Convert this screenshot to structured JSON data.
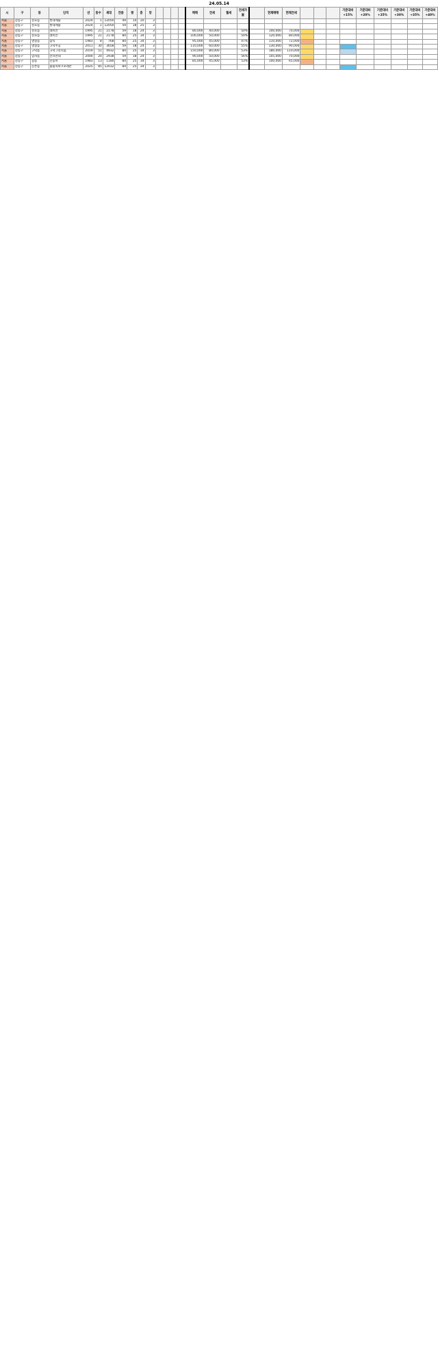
{
  "sheet": {
    "date_label": "24.05.14"
  },
  "columns": [
    "시",
    "구",
    "동",
    "단지",
    "년",
    "동수",
    "세대",
    "전용",
    "평",
    "층",
    "방",
    "",
    "",
    "",
    "",
    "매매",
    "전세",
    "월세",
    "전세가율",
    "",
    "현재매매",
    "현재전세",
    "",
    "",
    "",
    "기준대비 +15%",
    "기준대비 +20%",
    "기준대비 +25%",
    "기준대비 +30%",
    "기준대비 +35%",
    "기준대비 +40%"
  ],
  "rows": [
    {
      "c": [
        "서울",
        "강동구",
        "천호동",
        "롯데캐슬",
        "2024",
        "1",
        "12050",
        "49",
        "14",
        "20",
        "3",
        "",
        "",
        "",
        "",
        "",
        "",
        "",
        "",
        "",
        "",
        "",
        "",
        "",
        "",
        "",
        "",
        "",
        "",
        "",
        ""
      ]
    },
    {
      "c": [
        "서울",
        "강동구",
        "천호동",
        "롯데캐슬",
        "2024",
        "1",
        "12050",
        "59",
        "18",
        "25",
        "3",
        "",
        "",
        "",
        "",
        "",
        "",
        "",
        "",
        "",
        "",
        "",
        "",
        "",
        "",
        "",
        "",
        "",
        "",
        "",
        ""
      ]
    },
    {
      "c": [
        "서울",
        "강동구",
        "천호동",
        "래미안",
        "1995",
        "21",
        "2178",
        "59",
        "18",
        "24",
        "3",
        "",
        "",
        "",
        "",
        "80,000",
        "40,000",
        "",
        "50%",
        "",
        "100,000",
        "70,000",
        "",
        "",
        "",
        "",
        "",
        "",
        "",
        "",
        ""
      ],
      "hl": {
        "22": "hl-yellow"
      }
    },
    {
      "c": [
        "서울",
        "강동구",
        "천호동",
        "래미안",
        "1995",
        "21",
        "2178",
        "84",
        "25",
        "34",
        "3",
        "",
        "",
        "",
        "",
        "100,000",
        "50,000",
        "",
        "50%",
        "",
        "120,000",
        "80,000",
        "",
        "",
        "",
        "",
        "",
        "",
        "",
        "",
        ""
      ],
      "hl": {
        "22": "hl-yellow"
      }
    },
    {
      "c": [
        "서울",
        "강동구",
        "명일동",
        "삼익",
        "1983",
        "8",
        "768",
        "84",
        "25",
        "34",
        "3",
        "",
        "",
        "",
        "",
        "95,000",
        "45,000",
        "",
        "47%",
        "",
        "110,000",
        "72,000",
        "",
        "",
        "",
        "",
        "",
        "",
        "",
        "",
        ""
      ],
      "hl": {
        "22": "hl-orange"
      }
    },
    {
      "c": [
        "서울",
        "강동구",
        "명일동",
        "고덕주공",
        "2011",
        "30",
        "3658",
        "59",
        "18",
        "24",
        "3",
        "",
        "",
        "",
        "",
        "110,000",
        "60,000",
        "",
        "55%",
        "",
        "130,000",
        "90,000",
        "",
        "",
        "",
        "",
        "",
        "",
        "",
        "",
        ""
      ],
      "hl": {
        "22": "hl-yellow",
        "25": "hl-cyan"
      }
    },
    {
      "c": [
        "서울",
        "강동구",
        "고덕동",
        "고덕그라시움",
        "2019",
        "51",
        "4932",
        "84",
        "25",
        "34",
        "3",
        "",
        "",
        "",
        "",
        "150,000",
        "80,000",
        "",
        "53%",
        "",
        "180,000",
        "110,000",
        "",
        "",
        "",
        "",
        "",
        "",
        "",
        "",
        ""
      ],
      "hl": {
        "22": "hl-yellow",
        "25": "hl-blue"
      }
    },
    {
      "c": [
        "서울",
        "강동구",
        "암사동",
        "선사현대",
        "2000",
        "20",
        "2938",
        "59",
        "18",
        "24",
        "3",
        "",
        "",
        "",
        "",
        "90,000",
        "50,000",
        "",
        "56%",
        "",
        "105,000",
        "70,000",
        "",
        "",
        "",
        "",
        "",
        "",
        "",
        "",
        ""
      ],
      "hl": {
        "22": "hl-yellow"
      }
    },
    {
      "c": [
        "서울",
        "강동구",
        "길동",
        "신동아",
        "1983",
        "13",
        "1180",
        "84",
        "25",
        "34",
        "3",
        "",
        "",
        "",
        "",
        "85,000",
        "45,000",
        "",
        "53%",
        "",
        "100,000",
        "65,000",
        "",
        "",
        "",
        "",
        "",
        "",
        "",
        "",
        ""
      ],
      "hl": {
        "22": "hl-orange"
      }
    },
    {
      "c": [
        "서울",
        "강동구",
        "둔촌동",
        "올림픽파크포레온",
        "2025",
        "85",
        "12032",
        "84",
        "25",
        "34",
        "3",
        "",
        "",
        "",
        "",
        "",
        "",
        "",
        "",
        "",
        "",
        "",
        "",
        "",
        "",
        "",
        "",
        "",
        "",
        "",
        ""
      ],
      "hl": {
        "25": "hl-cyan"
      }
    }
  ]
}
